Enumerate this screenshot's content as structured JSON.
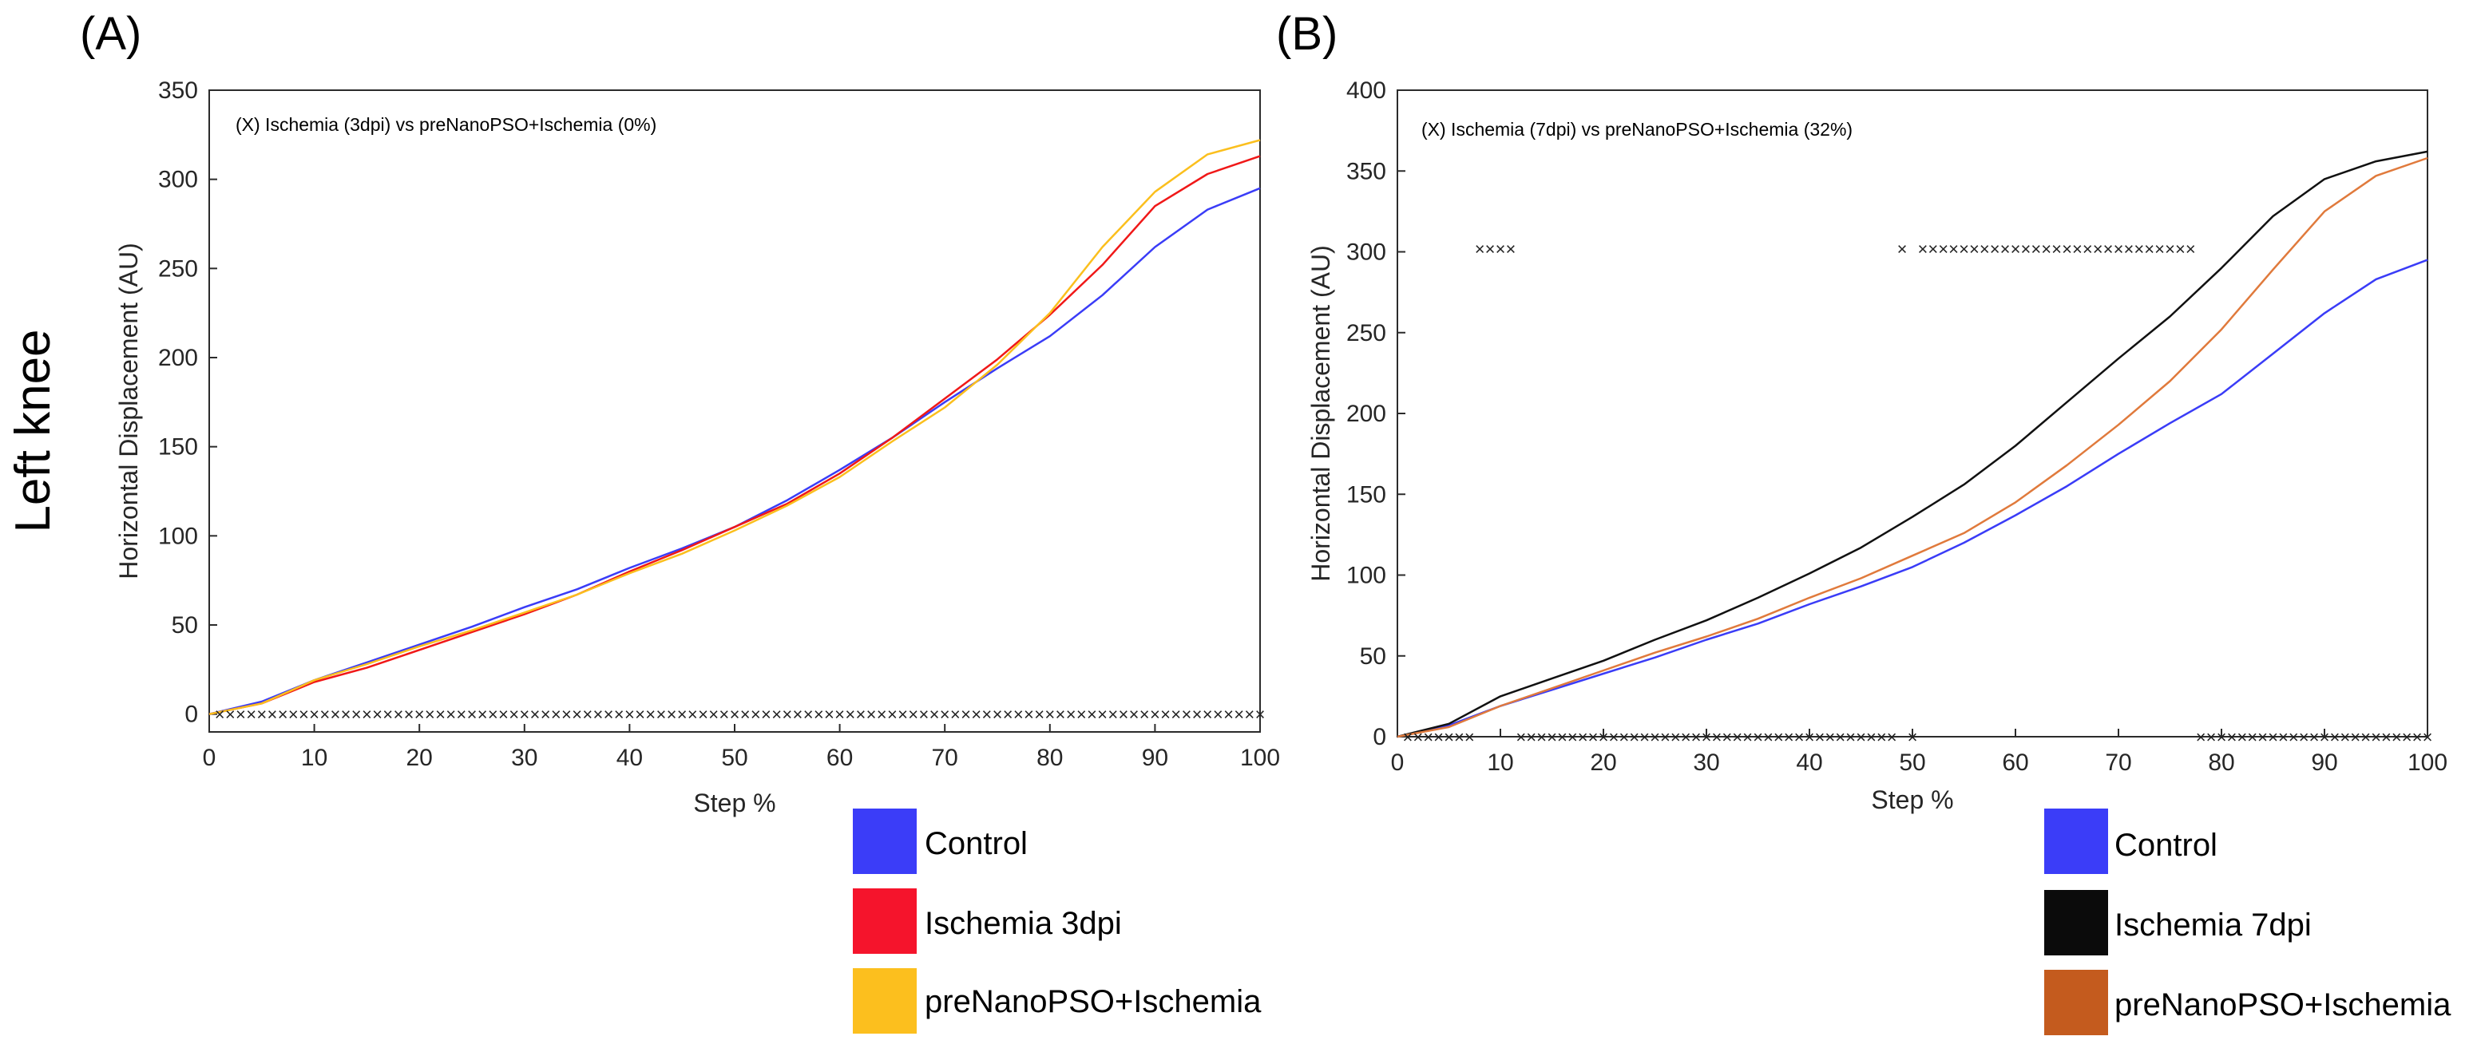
{
  "row_label": "Left knee",
  "chart_data": [
    {
      "type": "line",
      "panel_label": "(A)",
      "annotation": "(X) Ischemia (3dpi) vs preNanoPSO+Ischemia (0%)",
      "xlabel": "Step %",
      "ylabel": "Horizontal Displacement (AU)",
      "xlim": [
        0,
        100
      ],
      "ylim": [
        -10,
        350
      ],
      "xticks": [
        0,
        10,
        20,
        30,
        40,
        50,
        60,
        70,
        80,
        90,
        100
      ],
      "yticks": [
        0,
        50,
        100,
        150,
        200,
        250,
        300,
        350
      ],
      "x": [
        0,
        5,
        10,
        15,
        20,
        25,
        30,
        35,
        40,
        45,
        50,
        55,
        60,
        65,
        70,
        75,
        80,
        85,
        90,
        95,
        100
      ],
      "series": [
        {
          "name": "Control",
          "color": "#3a3cf7",
          "values": [
            0,
            7,
            19,
            29,
            39,
            49,
            60,
            70,
            82,
            93,
            105,
            120,
            137,
            155,
            175,
            194,
            212,
            235,
            262,
            283,
            295
          ]
        },
        {
          "name": "Ischemia 3dpi",
          "color": "#f01818",
          "values": [
            0,
            6,
            18,
            26,
            36,
            46,
            56,
            67,
            80,
            92,
            105,
            118,
            135,
            155,
            177,
            199,
            224,
            252,
            285,
            303,
            313
          ]
        },
        {
          "name": "preNanoPSO+Ischemia",
          "color": "#fbbf1d",
          "values": [
            0,
            6,
            19,
            28,
            38,
            47,
            57,
            67,
            79,
            90,
            103,
            117,
            133,
            153,
            172,
            196,
            225,
            262,
            293,
            314,
            322
          ]
        }
      ],
      "marker_rows": [
        {
          "y": 0,
          "x": [
            1,
            2,
            3,
            4,
            5,
            6,
            7,
            8,
            9,
            10,
            11,
            12,
            13,
            14,
            15,
            16,
            17,
            18,
            19,
            20,
            21,
            22,
            23,
            24,
            25,
            26,
            27,
            28,
            29,
            30,
            31,
            32,
            33,
            34,
            35,
            36,
            37,
            38,
            39,
            40,
            41,
            42,
            43,
            44,
            45,
            46,
            47,
            48,
            49,
            50,
            51,
            52,
            53,
            54,
            55,
            56,
            57,
            58,
            59,
            60,
            61,
            62,
            63,
            64,
            65,
            66,
            67,
            68,
            69,
            70,
            71,
            72,
            73,
            74,
            75,
            76,
            77,
            78,
            79,
            80,
            81,
            82,
            83,
            84,
            85,
            86,
            87,
            88,
            89,
            90,
            91,
            92,
            93,
            94,
            95,
            96,
            97,
            98,
            99,
            100
          ]
        }
      ],
      "marker_symbol": "×"
    },
    {
      "type": "line",
      "panel_label": "(B)",
      "annotation": "(X) Ischemia (7dpi) vs preNanoPSO+Ischemia (32%)",
      "xlabel": "Step %",
      "ylabel": "Horizontal Displacement (AU)",
      "xlim": [
        0,
        100
      ],
      "ylim": [
        0,
        400
      ],
      "xticks": [
        0,
        10,
        20,
        30,
        40,
        50,
        60,
        70,
        80,
        90,
        100
      ],
      "yticks": [
        0,
        50,
        100,
        150,
        200,
        250,
        300,
        350,
        400
      ],
      "x": [
        0,
        5,
        10,
        15,
        20,
        25,
        30,
        35,
        40,
        45,
        50,
        55,
        60,
        65,
        70,
        75,
        80,
        85,
        90,
        95,
        100
      ],
      "series": [
        {
          "name": "Control",
          "color": "#3a3cf7",
          "values": [
            0,
            7,
            19,
            29,
            39,
            49,
            60,
            70,
            82,
            93,
            105,
            120,
            137,
            155,
            175,
            194,
            212,
            237,
            262,
            283,
            295
          ]
        },
        {
          "name": "Ischemia 7dpi",
          "color": "#111111",
          "values": [
            0,
            8,
            25,
            36,
            47,
            60,
            72,
            86,
            101,
            117,
            136,
            156,
            180,
            207,
            234,
            260,
            290,
            322,
            345,
            356,
            362
          ]
        },
        {
          "name": "preNanoPSO+Ischemia",
          "color": "#e07a3c",
          "values": [
            0,
            6,
            19,
            30,
            41,
            52,
            62,
            73,
            86,
            98,
            112,
            126,
            145,
            168,
            193,
            220,
            252,
            289,
            325,
            347,
            358
          ]
        }
      ],
      "marker_rows": [
        {
          "y": 0,
          "x": [
            1,
            2,
            3,
            4,
            5,
            6,
            7,
            12,
            13,
            14,
            15,
            16,
            17,
            18,
            19,
            20,
            21,
            22,
            23,
            24,
            25,
            26,
            27,
            28,
            29,
            30,
            31,
            32,
            33,
            34,
            35,
            36,
            37,
            38,
            39,
            40,
            41,
            42,
            43,
            44,
            45,
            46,
            47,
            48,
            50,
            78,
            79,
            80,
            81,
            82,
            83,
            84,
            85,
            86,
            87,
            88,
            89,
            90,
            91,
            92,
            93,
            94,
            95,
            96,
            97,
            98,
            99,
            100
          ]
        },
        {
          "y": 302,
          "x": [
            8,
            9,
            10,
            11,
            49,
            51,
            52,
            53,
            54,
            55,
            56,
            57,
            58,
            59,
            60,
            61,
            62,
            63,
            64,
            65,
            66,
            67,
            68,
            69,
            70,
            71,
            72,
            73,
            74,
            75,
            76,
            77
          ]
        }
      ],
      "marker_symbol": "×"
    }
  ],
  "legends": [
    {
      "items": [
        {
          "label": "Control",
          "color": "#3b3df8"
        },
        {
          "label": "Ischemia 3dpi",
          "color": "#f5142c"
        },
        {
          "label": "preNanoPSO+Ischemia",
          "color": "#fcbf1e"
        }
      ]
    },
    {
      "items": [
        {
          "label": "Control",
          "color": "#3b3df8"
        },
        {
          "label": "Ischemia 7dpi",
          "color": "#0b0b0b"
        },
        {
          "label": "preNanoPSO+Ischemia",
          "color": "#c45b1e"
        }
      ]
    }
  ]
}
